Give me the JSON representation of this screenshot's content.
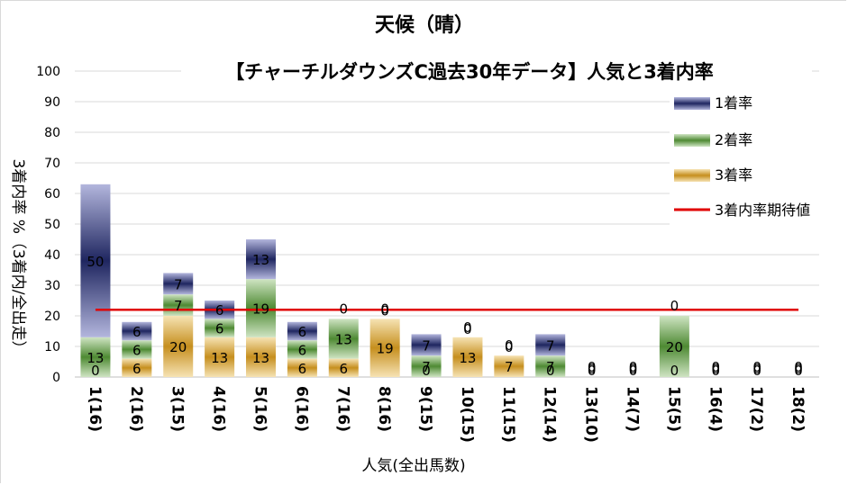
{
  "chart_data": {
    "type": "bar",
    "stacked": true,
    "title": "天候（晴）",
    "subtitle": "【チャーチルダウンズC過去30年データ】人気と3着内率",
    "xlabel": "人気(全出馬数)",
    "ylabel": "3着内率 %（3着内/全出走）",
    "ylim": [
      0,
      100
    ],
    "yticks": [
      0,
      10,
      20,
      30,
      40,
      50,
      60,
      70,
      80,
      90,
      100
    ],
    "grid": true,
    "legend_position": "right",
    "categories": [
      "1(16)",
      "2(16)",
      "3(15)",
      "4(16)",
      "5(16)",
      "6(16)",
      "7(16)",
      "8(16)",
      "9(15)",
      "10(15)",
      "11(15)",
      "12(14)",
      "13(10)",
      "14(7)",
      "15(5)",
      "16(4)",
      "17(2)",
      "18(2)"
    ],
    "series": [
      {
        "name": "3着率",
        "values": [
          0,
          6,
          20,
          13,
          13,
          6,
          6,
          19,
          0,
          13,
          7,
          0,
          0,
          0,
          0,
          0,
          0,
          0
        ],
        "color": "#c9962b"
      },
      {
        "name": "2着率",
        "values": [
          13,
          6,
          7,
          6,
          19,
          6,
          13,
          0,
          7,
          0,
          0,
          7,
          0,
          0,
          20,
          0,
          0,
          0
        ],
        "color": "#5f9e44"
      },
      {
        "name": "1着率",
        "values": [
          50,
          6,
          7,
          6,
          13,
          6,
          0,
          0,
          7,
          0,
          0,
          7,
          0,
          0,
          0,
          0,
          0,
          0
        ],
        "color": "#2f3a80"
      }
    ],
    "reference_line": {
      "name": "3着内率期待値",
      "value": 22,
      "color": "#e00000"
    }
  }
}
